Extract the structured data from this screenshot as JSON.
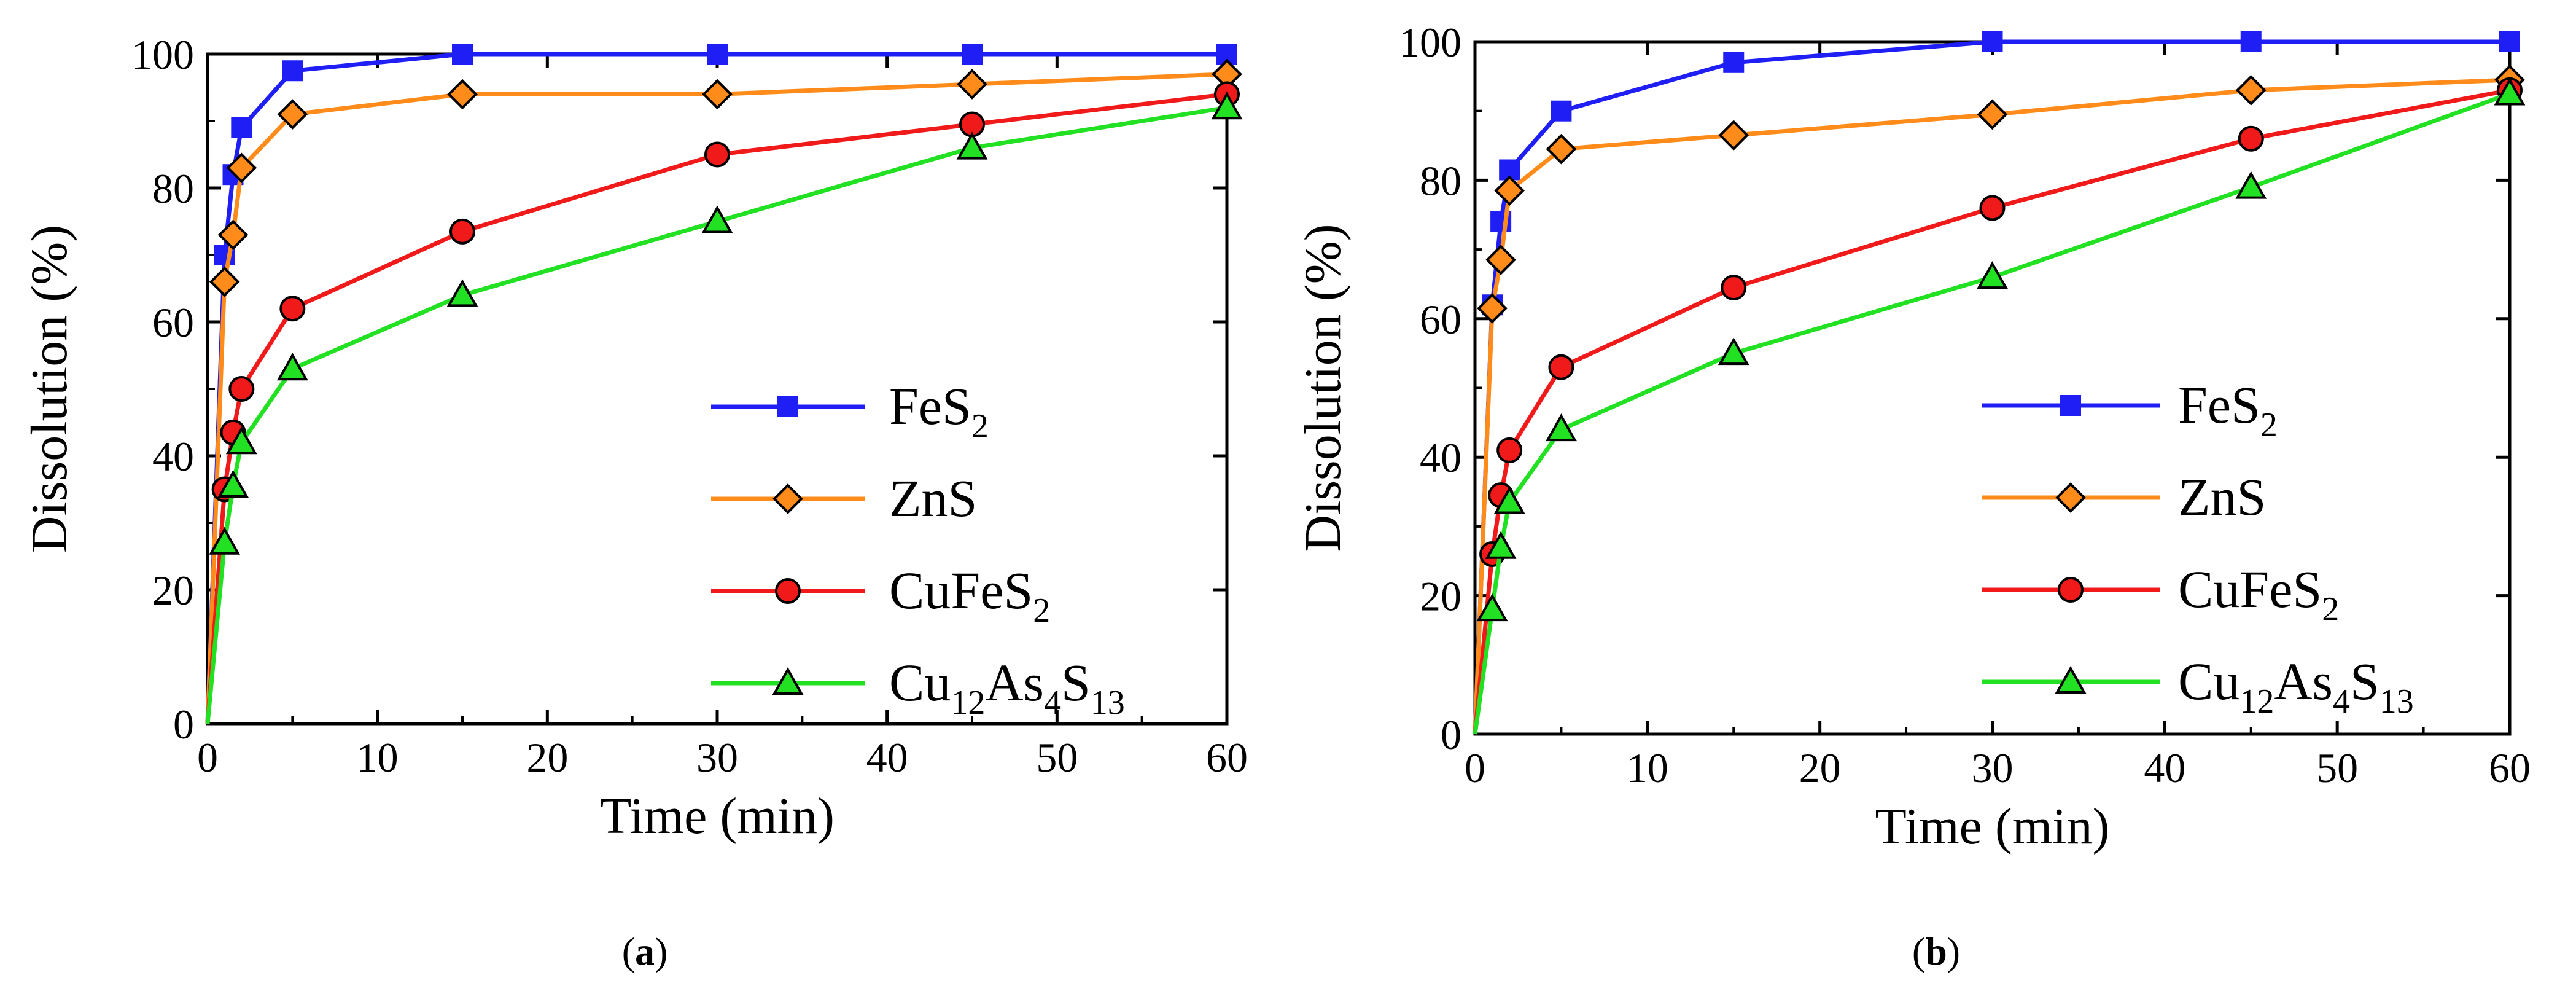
{
  "colors": {
    "FeS2": "#1f1ff5",
    "ZnS": "#ff8c1a",
    "CuFeS2": "#f01a1a",
    "Cu12As4S13": "#22e022",
    "axis": "#000000"
  },
  "chart_data": [
    {
      "type": "line",
      "caption": {
        "open": "(",
        "letter": "a",
        "close": ")"
      },
      "xlabel": "Time (min)",
      "ylabel": "Dissolution (%)",
      "xlim": [
        0,
        60
      ],
      "ylim": [
        0,
        100
      ],
      "xticks": [
        0,
        10,
        20,
        30,
        40,
        50,
        60
      ],
      "yticks": [
        0,
        20,
        40,
        60,
        80,
        100
      ],
      "grid": false,
      "legend_position": "bottom-right",
      "series": [
        {
          "key": "FeS2",
          "name": "FeS2",
          "label_parts": [
            {
              "t": "FeS"
            },
            {
              "t": "2",
              "sub": true
            }
          ],
          "marker": "square",
          "x": [
            0,
            1,
            1.5,
            2,
            5,
            15,
            30,
            45,
            60
          ],
          "y": [
            0,
            70,
            82,
            89,
            97.5,
            100,
            100,
            100,
            100
          ]
        },
        {
          "key": "ZnS",
          "name": "ZnS",
          "label_parts": [
            {
              "t": "ZnS"
            }
          ],
          "marker": "diamond",
          "x": [
            0,
            1,
            1.5,
            2,
            5,
            15,
            30,
            45,
            60
          ],
          "y": [
            0,
            66,
            73,
            83,
            91,
            94,
            94,
            95.5,
            97
          ]
        },
        {
          "key": "CuFeS2",
          "name": "CuFeS2",
          "label_parts": [
            {
              "t": "CuFeS"
            },
            {
              "t": "2",
              "sub": true
            }
          ],
          "marker": "circle",
          "x": [
            0,
            1,
            1.5,
            2,
            5,
            15,
            30,
            45,
            60
          ],
          "y": [
            0,
            35,
            43.5,
            50,
            62,
            73.5,
            85,
            89.5,
            94
          ]
        },
        {
          "key": "Cu12As4S13",
          "name": "Cu12As4S13",
          "label_parts": [
            {
              "t": "Cu"
            },
            {
              "t": "12",
              "sub": true
            },
            {
              "t": "As"
            },
            {
              "t": "4",
              "sub": true
            },
            {
              "t": "S"
            },
            {
              "t": "13",
              "sub": true
            }
          ],
          "marker": "triangle",
          "x": [
            0,
            1,
            1.5,
            2,
            5,
            15,
            30,
            45,
            60
          ],
          "y": [
            0,
            27,
            35.5,
            42,
            53,
            64,
            75,
            86,
            92
          ]
        }
      ]
    },
    {
      "type": "line",
      "caption": {
        "open": "(",
        "letter": "b",
        "close": ")"
      },
      "xlabel": "Time (min)",
      "ylabel": "Dissolution (%)",
      "xlim": [
        0,
        60
      ],
      "ylim": [
        0,
        100
      ],
      "xticks": [
        0,
        10,
        20,
        30,
        40,
        50,
        60
      ],
      "yticks": [
        0,
        20,
        40,
        60,
        80,
        100
      ],
      "grid": false,
      "legend_position": "bottom-right",
      "series": [
        {
          "key": "FeS2",
          "name": "FeS2",
          "label_parts": [
            {
              "t": "FeS"
            },
            {
              "t": "2",
              "sub": true
            }
          ],
          "marker": "square",
          "x": [
            0,
            1,
            1.5,
            2,
            5,
            15,
            30,
            45,
            60
          ],
          "y": [
            0,
            62,
            74,
            81.5,
            90,
            97,
            100,
            100,
            100
          ]
        },
        {
          "key": "ZnS",
          "name": "ZnS",
          "label_parts": [
            {
              "t": "ZnS"
            }
          ],
          "marker": "diamond",
          "x": [
            0,
            1,
            1.5,
            2,
            5,
            15,
            30,
            45,
            60
          ],
          "y": [
            0,
            61.5,
            68.5,
            78.5,
            84.5,
            86.5,
            89.5,
            93,
            94.5
          ]
        },
        {
          "key": "CuFeS2",
          "name": "CuFeS2",
          "label_parts": [
            {
              "t": "CuFeS"
            },
            {
              "t": "2",
              "sub": true
            }
          ],
          "marker": "circle",
          "x": [
            0,
            1,
            1.5,
            2,
            5,
            15,
            30,
            45,
            60
          ],
          "y": [
            0,
            26,
            34.5,
            41,
            53,
            64.5,
            76,
            86,
            93
          ]
        },
        {
          "key": "Cu12As4S13",
          "name": "Cu12As4S13",
          "label_parts": [
            {
              "t": "Cu"
            },
            {
              "t": "12",
              "sub": true
            },
            {
              "t": "As"
            },
            {
              "t": "4",
              "sub": true
            },
            {
              "t": "S"
            },
            {
              "t": "13",
              "sub": true
            }
          ],
          "marker": "triangle",
          "x": [
            0,
            1,
            1.5,
            2,
            5,
            15,
            30,
            45,
            60
          ],
          "y": [
            0,
            18,
            27,
            33.5,
            44,
            55,
            66,
            79,
            92.5
          ]
        }
      ]
    }
  ]
}
